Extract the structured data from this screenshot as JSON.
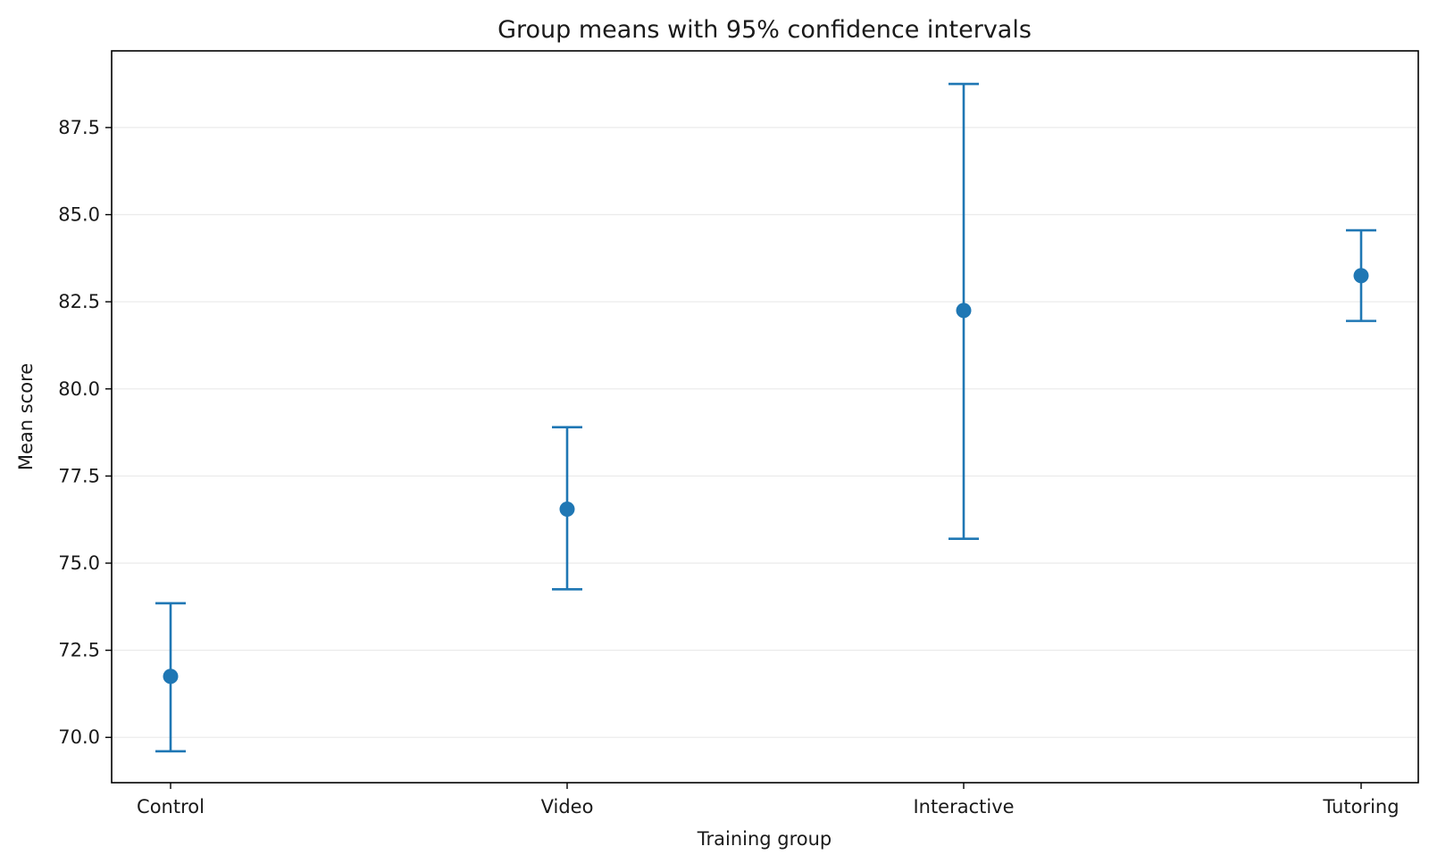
{
  "chart_data": {
    "type": "errorbar",
    "title": "Group means with 95% confidence intervals",
    "xlabel": "Training group",
    "ylabel": "Mean score",
    "categories": [
      "Control",
      "Video",
      "Interactive",
      "Tutoring"
    ],
    "means": [
      71.75,
      76.55,
      82.25,
      83.25
    ],
    "ci_lower": [
      69.6,
      74.25,
      75.7,
      81.95
    ],
    "ci_upper": [
      73.85,
      78.9,
      88.75,
      84.55
    ],
    "ylim": [
      68.7,
      89.7
    ],
    "yticks": [
      70.0,
      72.5,
      75.0,
      77.5,
      80.0,
      82.5,
      85.0,
      87.5
    ],
    "ytick_labels": [
      "70.0",
      "72.5",
      "75.0",
      "77.5",
      "80.0",
      "82.5",
      "85.0",
      "87.5"
    ],
    "grid": "horizontal",
    "color": "#1f77b4"
  }
}
